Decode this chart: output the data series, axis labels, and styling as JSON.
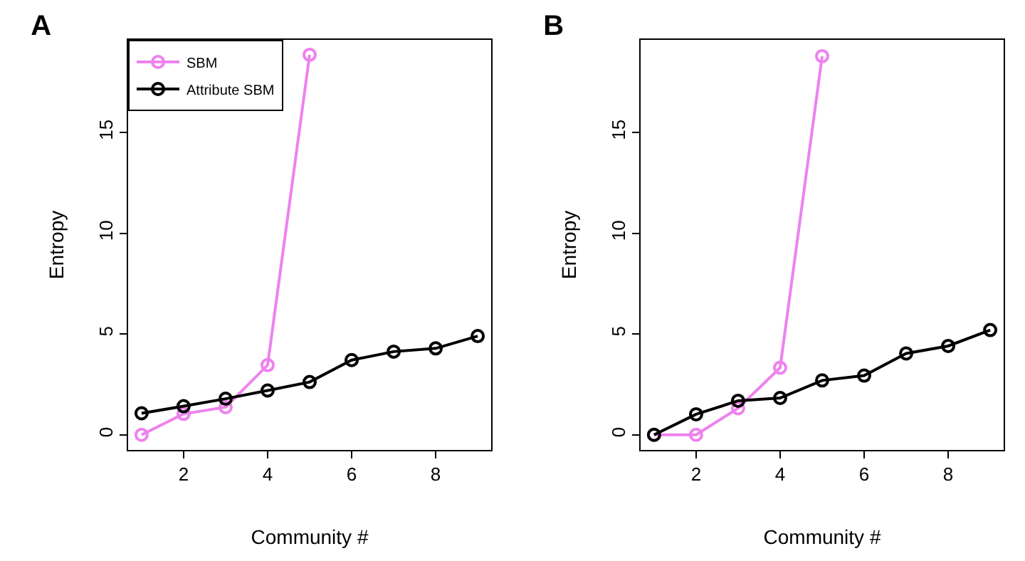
{
  "chart_data": [
    {
      "type": "line",
      "title": "A",
      "xlabel": "Community #",
      "ylabel": "Entropy",
      "xlim": [
        0.68,
        9.32
      ],
      "xticks": [
        2,
        4,
        6,
        8
      ],
      "ylim": [
        -0.75,
        19.6
      ],
      "yticks": [
        0,
        5,
        10,
        15
      ],
      "grid": false,
      "legend": "top left",
      "marker": "circle",
      "line_style": "solid",
      "series": [
        {
          "name": "SBM",
          "color": "#ee82ee",
          "x": [
            1,
            2,
            3,
            4,
            5
          ],
          "values": [
            0,
            1.04,
            1.37,
            3.46,
            18.86
          ]
        },
        {
          "name": "Attribute SBM",
          "color": "#000000",
          "x": [
            1,
            2,
            3,
            4,
            5,
            6,
            7,
            8,
            9
          ],
          "values": [
            1.07,
            1.42,
            1.79,
            2.2,
            2.62,
            3.71,
            4.13,
            4.29,
            4.9
          ]
        }
      ]
    },
    {
      "type": "line",
      "title": "B",
      "xlabel": "Community #",
      "ylabel": "Entropy",
      "xlim": [
        0.68,
        9.32
      ],
      "xticks": [
        2,
        4,
        6,
        8
      ],
      "ylim": [
        -0.75,
        19.6
      ],
      "yticks": [
        0,
        5,
        10,
        15
      ],
      "grid": false,
      "legend": false,
      "marker": "circle",
      "line_style": "solid",
      "series": [
        {
          "color": "#ee82ee",
          "x": [
            1,
            2,
            3,
            4,
            5
          ],
          "values": [
            0,
            0,
            1.32,
            3.33,
            18.79
          ]
        },
        {
          "color": "#000000",
          "x": [
            1,
            2,
            3,
            4,
            5,
            6,
            7,
            8,
            9
          ],
          "values": [
            0,
            1.02,
            1.69,
            1.83,
            2.7,
            2.94,
            4.04,
            4.41,
            5.2
          ]
        }
      ]
    }
  ]
}
